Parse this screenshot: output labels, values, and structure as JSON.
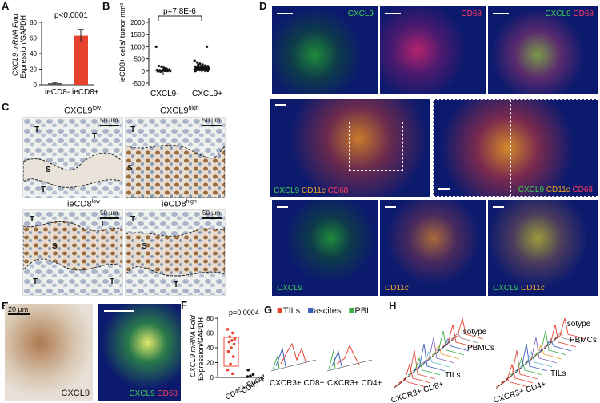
{
  "panels": {
    "A": {
      "letter": "A"
    },
    "B": {
      "letter": "B"
    },
    "C": {
      "letter": "C"
    },
    "D": {
      "letter": "D"
    },
    "E": {
      "letter": "E"
    },
    "F": {
      "letter": "F"
    },
    "G": {
      "letter": "G"
    },
    "H": {
      "letter": "H"
    }
  },
  "panelA": {
    "ylabel_1": "CXCL9 mRNA Fold",
    "ylabel_2": "Expression/GAPDH",
    "pvalue": "p<0.0001",
    "ticks": [
      "0",
      "20",
      "40",
      "60",
      "80"
    ],
    "colors": {
      "ieCD8-": "#555555",
      "ieCD8+": "#e8412c"
    }
  },
  "panelB": {
    "ylabel": "ieCD8+ cells/ tumor mm²",
    "pvalue": "p=7.8E-6",
    "ticks": [
      "-500",
      "0",
      "500",
      "1000",
      "1500",
      "2000"
    ]
  },
  "panelC": {
    "t1": "CXCL9",
    "t1sup": "low",
    "t2": "CXCL9",
    "t2sup": "high",
    "t3": "ieCD8",
    "t3sup": "low",
    "t4": "ieCD8",
    "t4sup": "high",
    "scalebar": "50 µm",
    "regionT": "T",
    "regionS": "S"
  },
  "panelD": {
    "cxcl9": "CXCL9",
    "cd68": "CD68",
    "cd11c": "CD11c"
  },
  "panelE": {
    "scalebar": "20 µm",
    "stain": "CXCL9",
    "m1": "CXCL9",
    "m2": "CD68"
  },
  "panelF": {
    "ylabel_1": "CXCL9 mRNA Fold",
    "ylabel_2": "Expression/GAPDH",
    "pvalue": "p=0.0004",
    "ticks": [
      "0",
      "20",
      "40",
      "60",
      "80"
    ],
    "cat1": "CD45+ Epcam-",
    "cat2": "CD45- Epcam+"
  },
  "panelG": {
    "legend": [
      {
        "name": "TILs",
        "color": "#e8412c"
      },
      {
        "name": "ascites",
        "color": "#3f5fbf"
      },
      {
        "name": "PBL",
        "color": "#3fae49"
      }
    ],
    "label1": "CXCR3+ CD8+",
    "label2": "CXCR3+ CD4+"
  },
  "panelH": {
    "isotype": "Isotype",
    "pbmcs": "PBMCs",
    "tils": "TILs",
    "label1": "CXCR3+ CD8+",
    "label2": "CXCR3+ CD4+"
  },
  "chart_data": [
    {
      "type": "bar",
      "panel": "A",
      "categories": [
        "ieCD8-",
        "ieCD8+"
      ],
      "values": [
        2,
        63
      ],
      "errors": [
        1,
        8
      ],
      "ylabel": "CXCL9 mRNA Fold Expression/GAPDH",
      "ylim": [
        0,
        80
      ],
      "annotation": "p<0.0001"
    },
    {
      "type": "scatter",
      "panel": "B",
      "categories": [
        "CXCL9-",
        "CXCL9+"
      ],
      "ylabel": "ieCD8+ cells/ tumor mm²",
      "ylim": [
        -500,
        2000
      ],
      "means": [
        30,
        100
      ],
      "sd": [
        200,
        150
      ],
      "points": [
        [
          0,
          1000
        ],
        [
          0,
          210
        ],
        [
          0,
          180
        ],
        [
          0,
          120
        ],
        [
          0,
          80
        ],
        [
          0,
          60
        ],
        [
          0,
          40
        ],
        [
          0,
          30
        ],
        [
          0,
          20
        ],
        [
          0,
          10
        ],
        [
          0,
          5
        ],
        [
          0,
          0
        ],
        [
          0,
          -10
        ],
        [
          0,
          -20
        ],
        [
          0,
          50
        ],
        [
          0,
          100
        ],
        [
          1,
          1000
        ],
        [
          1,
          420
        ],
        [
          1,
          350
        ],
        [
          1,
          300
        ],
        [
          1,
          260
        ],
        [
          1,
          220
        ],
        [
          1,
          200
        ],
        [
          1,
          180
        ],
        [
          1,
          160
        ],
        [
          1,
          150
        ],
        [
          1,
          140
        ],
        [
          1,
          130
        ],
        [
          1,
          120
        ],
        [
          1,
          110
        ],
        [
          1,
          100
        ],
        [
          1,
          90
        ],
        [
          1,
          80
        ],
        [
          1,
          70
        ],
        [
          1,
          60
        ],
        [
          1,
          50
        ],
        [
          1,
          40
        ],
        [
          1,
          30
        ],
        [
          1,
          20
        ],
        [
          1,
          10
        ],
        [
          1,
          0
        ],
        [
          1,
          240
        ],
        [
          1,
          190
        ],
        [
          1,
          170
        ],
        [
          1,
          125
        ],
        [
          1,
          95
        ]
      ],
      "annotation": "p=7.8E-6"
    },
    {
      "type": "scatter",
      "panel": "F",
      "categories": [
        "CD45+ Epcam-",
        "CD45- Epcam+"
      ],
      "ylabel": "CXCL9 mRNA Fold Expression/GAPDH",
      "ylim": [
        0,
        80
      ],
      "points": [
        [
          0,
          65
        ],
        [
          0,
          60
        ],
        [
          0,
          55
        ],
        [
          0,
          52
        ],
        [
          0,
          50
        ],
        [
          0,
          48
        ],
        [
          0,
          45
        ],
        [
          0,
          40
        ],
        [
          0,
          35
        ],
        [
          0,
          28
        ],
        [
          0,
          18
        ],
        [
          0,
          10
        ],
        [
          0,
          5
        ],
        [
          1,
          10
        ],
        [
          1,
          4
        ],
        [
          1,
          2
        ],
        [
          1,
          1
        ]
      ],
      "annotation": "p=0.0004"
    }
  ]
}
